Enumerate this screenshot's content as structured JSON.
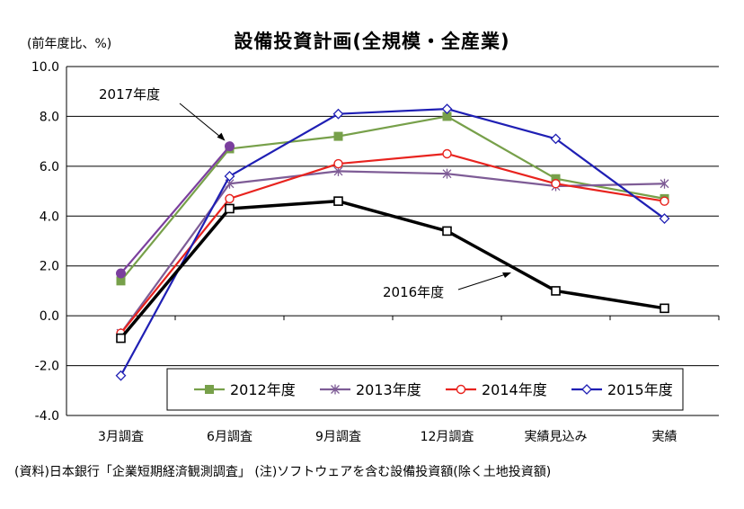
{
  "title": "設備投資計画(全規模・全産業)",
  "y_unit": "(前年度比、%)",
  "footnote": "(資料)日本銀行「企業短期経済観測調査」 (注)ソフトウェアを含む設備投資額(除く土地投資額)",
  "annotations": [
    "2017年度",
    "2016年度"
  ],
  "chart_data": {
    "type": "line",
    "title": "設備投資計画(全規模・全産業)",
    "ylabel": "(前年度比、%)",
    "xlabel": "",
    "categories": [
      "3月調査",
      "6月調査",
      "9月調査",
      "12月調査",
      "実績見込み",
      "実績"
    ],
    "ylim": [
      -4.0,
      10.0
    ],
    "yticks": [
      "10.0",
      "8.0",
      "6.0",
      "4.0",
      "2.0",
      "0.0",
      "-2.0",
      "-4.0"
    ],
    "grid": true,
    "legend_position": "bottom-inside",
    "series": [
      {
        "name": "2012年度",
        "color": "#77A04A",
        "marker": "filled-square",
        "values": [
          1.4,
          6.7,
          7.2,
          8.0,
          5.5,
          4.7
        ]
      },
      {
        "name": "2013年度",
        "color": "#7E5C96",
        "marker": "asterisk",
        "values": [
          -0.7,
          5.3,
          5.8,
          5.7,
          5.2,
          5.3
        ]
      },
      {
        "name": "2014年度",
        "color": "#E8231E",
        "marker": "open-circle",
        "values": [
          -0.7,
          4.7,
          6.1,
          6.5,
          5.3,
          4.6
        ]
      },
      {
        "name": "2015年度",
        "color": "#1F1FB4",
        "marker": "open-diamond",
        "values": [
          -2.4,
          5.6,
          8.1,
          8.3,
          7.1,
          3.9
        ]
      },
      {
        "name": "2016年度",
        "color": "#000000",
        "marker": "open-square",
        "in_legend": false,
        "values": [
          -0.9,
          4.3,
          4.6,
          3.4,
          1.0,
          0.3
        ]
      },
      {
        "name": "2017年度",
        "color": "#7B3F9E",
        "marker": "filled-circle",
        "in_legend": false,
        "values": [
          1.7,
          6.8,
          null,
          null,
          null,
          null
        ]
      }
    ]
  }
}
